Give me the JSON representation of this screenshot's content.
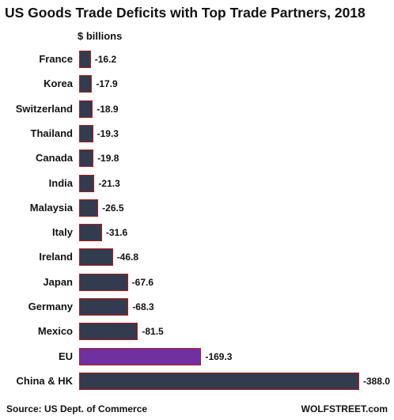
{
  "chart_data": {
    "type": "bar",
    "orientation": "horizontal",
    "title": "US Goods Trade Deficits with Top Trade Partners, 2018",
    "unit_label": "$ billions",
    "categories": [
      "France",
      "Korea",
      "Switzerland",
      "Thailand",
      "Canada",
      "India",
      "Malaysia",
      "Italy",
      "Ireland",
      "Japan",
      "Germany",
      "Mexico",
      "EU",
      "China & HK"
    ],
    "values": [
      -16.2,
      -17.9,
      -18.9,
      -19.3,
      -19.8,
      -21.3,
      -26.5,
      -31.6,
      -46.8,
      -67.6,
      -68.3,
      -81.5,
      -169.3,
      -388.0
    ],
    "value_labels": [
      "-16.2",
      "-17.9",
      "-18.9",
      "-19.3",
      "-19.8",
      "-21.3",
      "-26.5",
      "-31.6",
      "-46.8",
      "-67.6",
      "-68.3",
      "-81.5",
      "-169.3",
      "-388.0"
    ],
    "bar_colors": [
      "#333b4f",
      "#333b4f",
      "#333b4f",
      "#333b4f",
      "#333b4f",
      "#333b4f",
      "#333b4f",
      "#333b4f",
      "#333b4f",
      "#333b4f",
      "#333b4f",
      "#333b4f",
      "#7030a0",
      "#333b4f"
    ],
    "bar_border_color": "#b01c1c",
    "xlim": [
      0,
      -388.0
    ],
    "grid": false,
    "legend": "none"
  },
  "footer": {
    "source": "Source: US Dept. of Commerce",
    "brand": "WOLFSTREET.com"
  }
}
